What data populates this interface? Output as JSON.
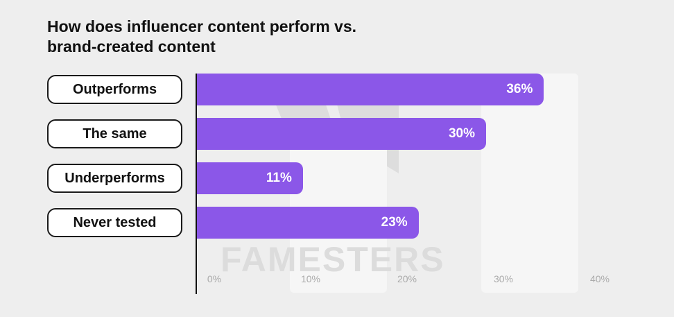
{
  "title_line1": "How does influencer content perform vs.",
  "title_line2": "brand-created content",
  "watermark": "FAMESTERS",
  "colors": {
    "bar": "#8b57e8",
    "background": "#eeeeee"
  },
  "chart_data": {
    "type": "bar",
    "orientation": "horizontal",
    "title": "How does influencer content perform vs. brand-created content",
    "categories": [
      "Outperforms",
      "The same",
      "Underperforms",
      "Never tested"
    ],
    "values": [
      36,
      30,
      11,
      23
    ],
    "value_labels": [
      "36%",
      "30%",
      "11%",
      "23%"
    ],
    "x_ticks": [
      "0%",
      "10%",
      "20%",
      "30%",
      "40%"
    ],
    "xlim": [
      0,
      40
    ],
    "grid": false,
    "legend": "none"
  }
}
